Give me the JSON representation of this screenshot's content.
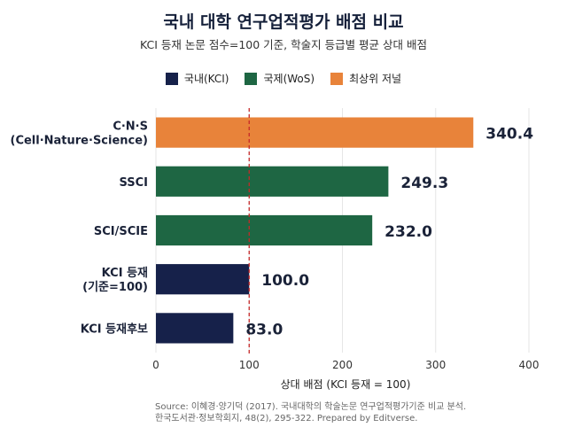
{
  "chart_data": {
    "type": "bar",
    "orientation": "horizontal",
    "title": "국내 대학 연구업적평가 배점 비교",
    "subtitle": "KCI 등재 논문 점수=100 기준, 학술지 등급별 평균 상대 배점",
    "xlabel": "상대 배점 (KCI 등재 = 100)",
    "ylabel": "",
    "xlim": [
      0,
      400
    ],
    "xticks": [
      "0",
      "100",
      "200",
      "300",
      "400"
    ],
    "grid": true,
    "reference_line": 100,
    "legend_position": "top",
    "legend": [
      {
        "label": "국내(KCI)",
        "color": "#16214a"
      },
      {
        "label": "국제(WoS)",
        "color": "#1e6643"
      },
      {
        "label": "최상위 저널",
        "color": "#e8833a"
      }
    ],
    "bars": [
      {
        "label_lines": [
          "C·N·S",
          "(Cell·Nature·Science)"
        ],
        "value": 340.4,
        "value_label": "340.4",
        "group": 2
      },
      {
        "label_lines": [
          "SSCI"
        ],
        "value": 249.3,
        "value_label": "249.3",
        "group": 1
      },
      {
        "label_lines": [
          "SCI/SCIE"
        ],
        "value": 232.0,
        "value_label": "232.0",
        "group": 1
      },
      {
        "label_lines": [
          "KCI 등재",
          "(기준=100)"
        ],
        "value": 100.0,
        "value_label": "100.0",
        "group": 0
      },
      {
        "label_lines": [
          "KCI 등재후보"
        ],
        "value": 83.0,
        "value_label": "83.0",
        "group": 0
      }
    ]
  },
  "source": {
    "line1": "Source: 이혜경·양기덕 (2017). 국내대학의 학술논문 연구업적평가기준 비교 분석.",
    "line2": "한국도서관·정보학회지, 48(2), 295-322. Prepared by Editverse."
  }
}
